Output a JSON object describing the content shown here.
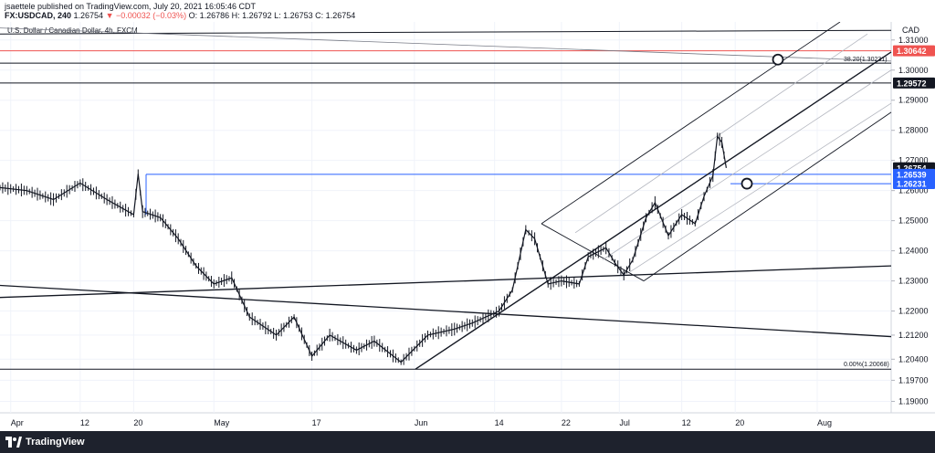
{
  "header": {
    "published_line": "jsaettele published on TradingView.com, July 20, 2021 16:05:46 CDT",
    "symbol": "FX:USDCAD, 240",
    "last": "1.26754",
    "change": "▼ −0.00032 (−0.03%)",
    "ohlc": "O: 1.26786  H: 1.26792  L: 1.26753  C: 1.26754"
  },
  "chart": {
    "title": "U.S. Dollar / Canadian Dollar, 4h, FXCM",
    "currency": "CAD"
  },
  "footer": {
    "brand": "TradingView"
  },
  "chart_data": {
    "type": "candlestick",
    "title": "U.S. Dollar / Canadian Dollar, 4h, FXCM",
    "currency": "CAD",
    "x_tick_labels": [
      "Apr",
      "12",
      "20",
      "May",
      "17",
      "Jun",
      "14",
      "22",
      "Jul",
      "12",
      "20",
      "Aug"
    ],
    "y_tick_labels": [
      "1.31000",
      "1.30000",
      "1.29000",
      "1.28000",
      "1.27000",
      "1.26000",
      "1.25000",
      "1.24000",
      "1.23000",
      "1.22000",
      "1.21200",
      "1.20400",
      "1.19700",
      "1.19000"
    ],
    "ylim": [
      1.1862,
      1.316
    ],
    "price_badges": [
      {
        "value": "1.30642",
        "color": "#ef5350"
      },
      {
        "value": "1.29572",
        "color": "#131722"
      },
      {
        "value": "1.26754",
        "color": "#131722"
      },
      {
        "value": "1.26539",
        "color": "#2962ff"
      },
      {
        "value": "1.26231",
        "color": "#2962ff"
      }
    ],
    "fib_labels": [
      "38.20(1.30231)",
      "0.00%(1.20068)"
    ],
    "price_path": [
      [
        0,
        1.261
      ],
      [
        0.03,
        1.26
      ],
      [
        0.06,
        1.257
      ],
      [
        0.09,
        1.2625
      ],
      [
        0.12,
        1.257
      ],
      [
        0.15,
        1.252
      ],
      [
        0.155,
        1.2655
      ],
      [
        0.16,
        1.253
      ],
      [
        0.18,
        1.251
      ],
      [
        0.2,
        1.244
      ],
      [
        0.22,
        1.235
      ],
      [
        0.24,
        1.229
      ],
      [
        0.26,
        1.231
      ],
      [
        0.28,
        1.218
      ],
      [
        0.31,
        1.212
      ],
      [
        0.33,
        1.218
      ],
      [
        0.35,
        1.205
      ],
      [
        0.37,
        1.212
      ],
      [
        0.4,
        1.207
      ],
      [
        0.42,
        1.21
      ],
      [
        0.45,
        1.203
      ],
      [
        0.48,
        1.212
      ],
      [
        0.51,
        1.214
      ],
      [
        0.53,
        1.216
      ],
      [
        0.56,
        1.22
      ],
      [
        0.575,
        1.227
      ],
      [
        0.59,
        1.247
      ],
      [
        0.6,
        1.244
      ],
      [
        0.615,
        1.229
      ],
      [
        0.63,
        1.23
      ],
      [
        0.65,
        1.229
      ],
      [
        0.66,
        1.238
      ],
      [
        0.68,
        1.241
      ],
      [
        0.69,
        1.236
      ],
      [
        0.7,
        1.232
      ],
      [
        0.71,
        1.237
      ],
      [
        0.725,
        1.251
      ],
      [
        0.735,
        1.256
      ],
      [
        0.75,
        1.245
      ],
      [
        0.765,
        1.252
      ],
      [
        0.78,
        1.249
      ],
      [
        0.79,
        1.258
      ],
      [
        0.8,
        1.265
      ],
      [
        0.805,
        1.278
      ],
      [
        0.81,
        1.276
      ],
      [
        0.815,
        1.2675
      ]
    ]
  }
}
